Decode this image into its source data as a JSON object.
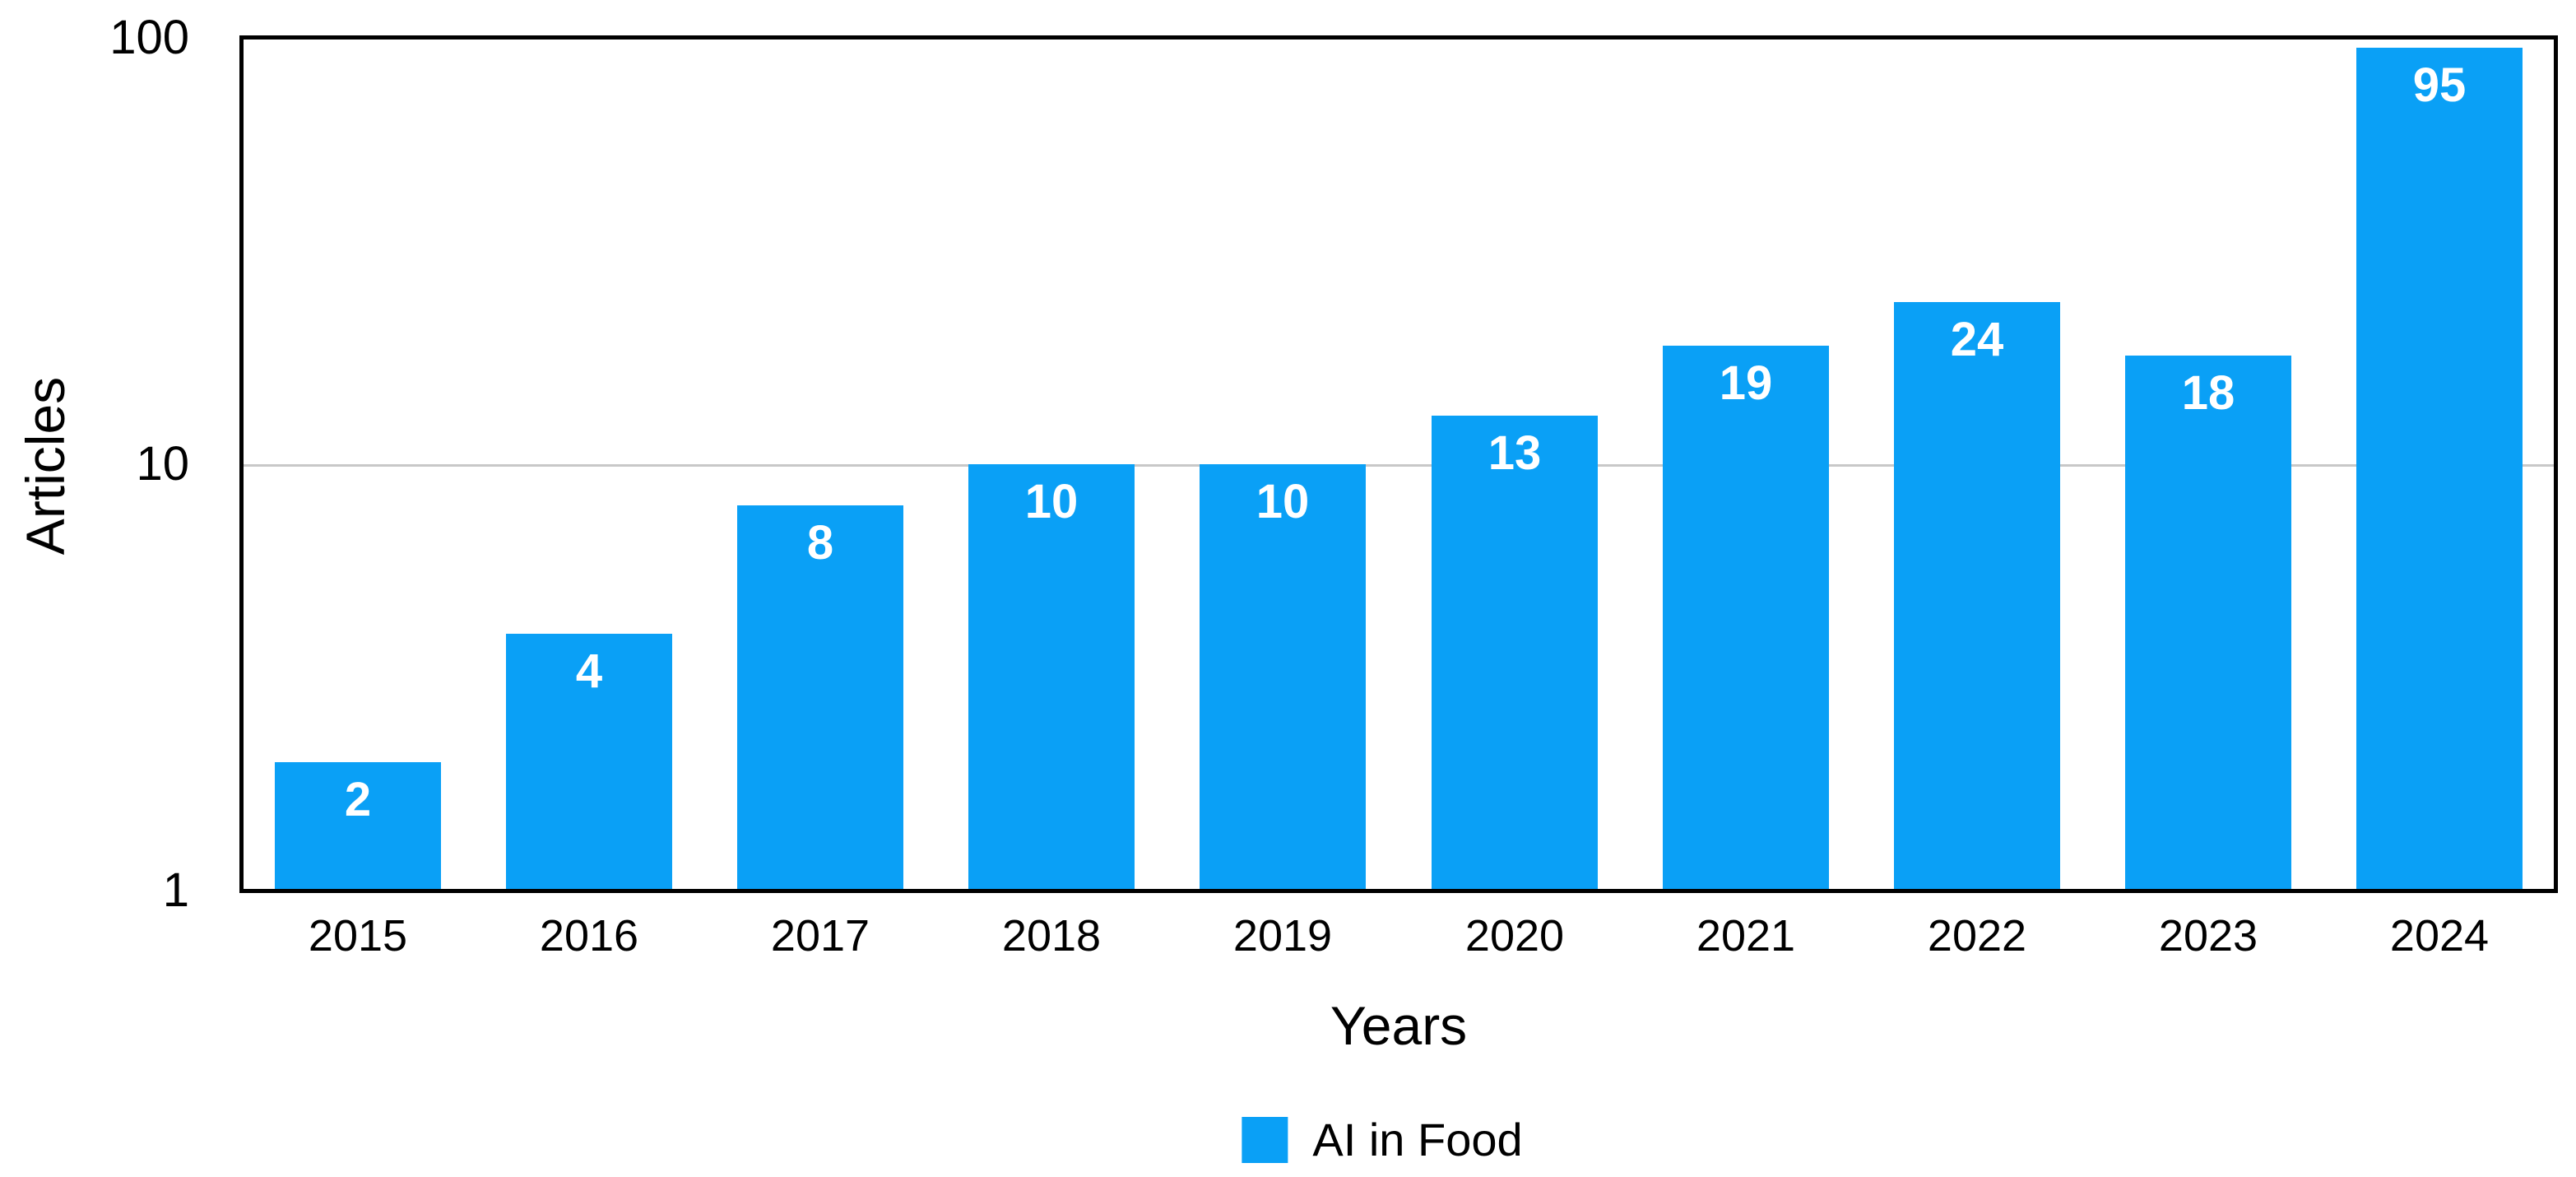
{
  "chart_data": {
    "type": "bar",
    "title": "",
    "categories": [
      "2015",
      "2016",
      "2017",
      "2018",
      "2019",
      "2020",
      "2021",
      "2022",
      "2023",
      "2024"
    ],
    "series": [
      {
        "name": "AI in Food",
        "values": [
          2,
          4,
          8,
          10,
          10,
          13,
          19,
          24,
          18,
          95
        ]
      }
    ],
    "xlabel": "Years",
    "ylabel": "Articles",
    "y_scale": "log10",
    "ylim": [
      1,
      100
    ],
    "y_ticks": [
      "1",
      "10",
      "100"
    ],
    "y_tick_values": [
      1,
      10,
      100
    ],
    "grid": "horizontal gridline at 10 only (1 and 100 coincide with plot border)",
    "legend_position": "bottom-center",
    "value_labels": "white, bold, inside top of each bar",
    "colors": {
      "bar": "#0aa0f6",
      "value_label": "#ffffff",
      "gridline": "#c8c8c8",
      "plot_border": "#000000",
      "text": "#000000",
      "background": "#ffffff"
    }
  }
}
